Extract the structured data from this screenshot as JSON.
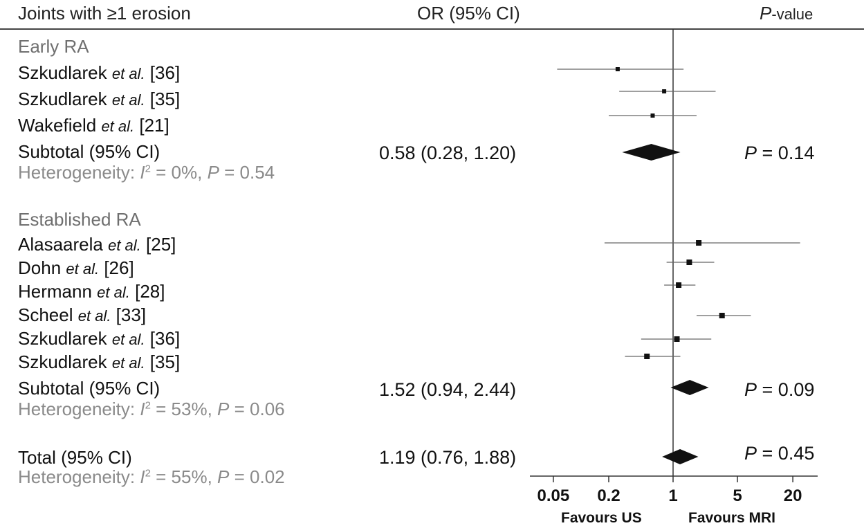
{
  "header": {
    "title": "Joints with ≥1 erosion",
    "or_col": "OR (95% CI)",
    "p_italic": "P",
    "p_rest": "-value"
  },
  "chart_data": {
    "type": "forest",
    "x_scale": "log",
    "xlim": [
      0.03,
      28
    ],
    "reference_value": 1,
    "x_ticks": [
      0.05,
      0.2,
      1,
      5,
      20
    ],
    "x_tick_labels": [
      "0.05",
      "0.2",
      "1",
      "5",
      "20"
    ],
    "favours_left": "Favours US",
    "favours_right": "Favours MRI",
    "groups": [
      {
        "label": "Early RA",
        "studies": [
          {
            "author": "Szkudlarek",
            "etal": "et al.",
            "ref": "[36]",
            "or": 0.25,
            "lo": 0.055,
            "hi": 1.3
          },
          {
            "author": "Szkudlarek",
            "etal": "et al.",
            "ref": "[35]",
            "or": 0.8,
            "lo": 0.26,
            "hi": 2.9
          },
          {
            "author": "Wakefield",
            "etal": "et al.",
            "ref": "[21]",
            "or": 0.6,
            "lo": 0.2,
            "hi": 1.8
          }
        ],
        "subtotal": {
          "label": "Subtotal (95% CI)",
          "or_text": "0.58 (0.28, 1.20)",
          "or": 0.58,
          "lo": 0.28,
          "hi": 1.2,
          "p_label": "P",
          "p_value": "= 0.14",
          "het_prefix": "Heterogeneity: ",
          "het_i": "I",
          "het_sup": "2",
          "het_i2": " = 0%, ",
          "het_p": "P",
          "het_pval": " = 0.54"
        }
      },
      {
        "label": "Established RA",
        "studies": [
          {
            "author": "Alasaarela",
            "etal": "et al.",
            "ref": "[25]",
            "or": 1.9,
            "lo": 0.18,
            "hi": 24
          },
          {
            "author": "Dohn",
            "etal": "et al.",
            "ref": "[26]",
            "or": 1.5,
            "lo": 0.85,
            "hi": 2.8
          },
          {
            "author": "Hermann",
            "etal": "et al.",
            "ref": "[28]",
            "or": 1.15,
            "lo": 0.8,
            "hi": 1.75
          },
          {
            "author": "Scheel",
            "etal": "et al.",
            "ref": "[33]",
            "or": 3.4,
            "lo": 1.8,
            "hi": 7
          },
          {
            "author": "Szkudlarek",
            "etal": "et al.",
            "ref": "[36]",
            "or": 1.1,
            "lo": 0.45,
            "hi": 2.6
          },
          {
            "author": "Szkudlarek",
            "etal": "et al.",
            "ref": "[35]",
            "or": 0.52,
            "lo": 0.3,
            "hi": 1.2
          }
        ],
        "subtotal": {
          "label": "Subtotal (95% CI)",
          "or_text": "1.52 (0.94, 2.44)",
          "or": 1.52,
          "lo": 0.94,
          "hi": 2.44,
          "p_label": "P",
          "p_value": "= 0.09",
          "het_prefix": "Heterogeneity: ",
          "het_i": "I",
          "het_sup": "2",
          "het_i2": " = 53%, ",
          "het_p": "P",
          "het_pval": " = 0.06"
        }
      }
    ],
    "total": {
      "label": "Total (95% CI)",
      "or_text": "1.19 (0.76, 1.88)",
      "or": 1.19,
      "lo": 0.76,
      "hi": 1.88,
      "p_label": "P",
      "p_value": "= 0.45",
      "het_prefix": "Heterogeneity: ",
      "het_i": "I",
      "het_sup": "2",
      "het_i2": " = 55%, ",
      "het_p": "P",
      "het_pval": " = 0.02"
    }
  }
}
